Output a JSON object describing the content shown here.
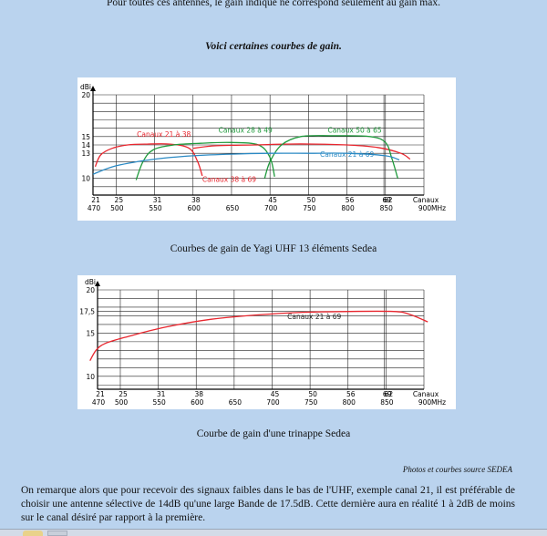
{
  "text": {
    "intro": "Pour toutes ces antennes, le gain indiqué ne correspond seulement au gain max.",
    "heading": "Voici certaines courbes de gain.",
    "caption1": "Courbes de gain de Yagi UHF 13 éléments Sedea",
    "caption2": "Courbe de gain d'une trinappe Sedea",
    "photos": "Photos et courbes source SEDEA",
    "paragraph": "On remarque alors que pour recevoir des signaux faibles dans le bas de l'UHF, exemple canal 21, il est préférable de choisir une antenne sélective de 14dB qu'une large Bande de 17.5dB. Cette dernière aura en réalité 1 à 2dB de moins sur le canal désiré par rapport à la première."
  },
  "chart_data": [
    {
      "type": "line",
      "title": "",
      "ylabel": "dBi",
      "xlabel": "Canaux MHz",
      "ylim": [
        8,
        20
      ],
      "xlim": [
        470,
        900
      ],
      "y_ticks": [
        {
          "value": 20,
          "label": "20"
        },
        {
          "value": 15,
          "label": "15"
        },
        {
          "value": 14,
          "label": "14"
        },
        {
          "value": 13,
          "label": "13"
        },
        {
          "value": 10,
          "label": "10"
        }
      ],
      "x_ticks": [
        {
          "value": 470,
          "mhz": "470",
          "canal": "21"
        },
        {
          "value": 500,
          "mhz": "500",
          "canal": "25"
        },
        {
          "value": 550,
          "mhz": "550",
          "canal": "31"
        },
        {
          "value": 600,
          "mhz": "600",
          "canal": "38"
        },
        {
          "value": 650,
          "mhz": "650",
          "canal": ""
        },
        {
          "value": 700,
          "mhz": "700",
          "canal": "45"
        },
        {
          "value": 750,
          "mhz": "750",
          "canal": "50"
        },
        {
          "value": 800,
          "mhz": "800",
          "canal": "56"
        },
        {
          "value": 850,
          "mhz": "850",
          "canal": "62"
        },
        {
          "value": 900,
          "mhz": "900",
          "canal": "69"
        }
      ],
      "x_ticks_extra": [
        {
          "value": 848,
          "canal": "69"
        }
      ],
      "axis_unit_label": "Canaux",
      "axis_unit_mhz": "MHz",
      "grid": true,
      "series": [
        {
          "name": "Canaux 21 à 38",
          "color": "#e8262e",
          "x": [
            473,
            480,
            495,
            515,
            540,
            570,
            595,
            606,
            612
          ],
          "y": [
            11.4,
            12.8,
            13.6,
            14.0,
            14.1,
            14.1,
            13.6,
            12.0,
            10.3
          ]
        },
        {
          "name": "Canaux 28 à 49",
          "color": "#1f9a3c",
          "x": [
            526,
            535,
            548,
            575,
            610,
            650,
            685,
            700,
            706
          ],
          "y": [
            9.8,
            12.0,
            13.4,
            14.0,
            14.2,
            14.3,
            14.0,
            12.5,
            10.2
          ]
        },
        {
          "name": "Canaux 38 à 69",
          "color": "#e8262e",
          "x": [
            600,
            630,
            680,
            720,
            760,
            800,
            840,
            870,
            882
          ],
          "y": [
            13.6,
            13.9,
            14.0,
            14.1,
            14.1,
            14.0,
            13.7,
            13.0,
            12.3
          ]
        },
        {
          "name": "Canaux 50 à 65",
          "color": "#1f9a3c",
          "x": [
            693,
            700,
            715,
            740,
            780,
            830,
            850,
            858,
            866
          ],
          "y": [
            10.0,
            12.0,
            14.0,
            15.0,
            15.1,
            15.0,
            14.3,
            12.5,
            10.0
          ]
        },
        {
          "name": "Canaux 21 à 69",
          "color": "#2b8ac4",
          "x": [
            470,
            500,
            550,
            600,
            650,
            700,
            750,
            800,
            850,
            868
          ],
          "y": [
            10.5,
            11.5,
            12.3,
            12.7,
            12.9,
            13.0,
            13.0,
            13.0,
            12.7,
            12.2
          ]
        }
      ],
      "annotations": [
        {
          "text": "Canaux 21 à 38",
          "x": 527,
          "y": 15.0,
          "color": "#e8262e"
        },
        {
          "text": "Canaux 28 à 49",
          "x": 633,
          "y": 15.5,
          "color": "#1f9a3c"
        },
        {
          "text": "Canaux 50 à 65",
          "x": 775,
          "y": 15.5,
          "color": "#1f9a3c"
        },
        {
          "text": "Canaux 21 à 69",
          "x": 765,
          "y": 12.6,
          "color": "#2b8ac4"
        },
        {
          "text": "Canaux 38 à 69",
          "x": 612,
          "y": 9.6,
          "color": "#e8262e"
        }
      ]
    },
    {
      "type": "line",
      "title": "",
      "ylabel": "dBi",
      "xlabel": "Canaux MHz",
      "ylim": [
        8.5,
        20
      ],
      "xlim": [
        470,
        900
      ],
      "y_ticks": [
        {
          "value": 20,
          "label": "20"
        },
        {
          "value": 17.5,
          "label": "17,5"
        },
        {
          "value": 15,
          "label": "15"
        },
        {
          "value": 10,
          "label": "10"
        }
      ],
      "x_ticks": [
        {
          "value": 470,
          "mhz": "470",
          "canal": "21"
        },
        {
          "value": 500,
          "mhz": "500",
          "canal": "25"
        },
        {
          "value": 550,
          "mhz": "550",
          "canal": "31"
        },
        {
          "value": 600,
          "mhz": "600",
          "canal": "38"
        },
        {
          "value": 650,
          "mhz": "650",
          "canal": ""
        },
        {
          "value": 700,
          "mhz": "700",
          "canal": "45"
        },
        {
          "value": 750,
          "mhz": "750",
          "canal": "50"
        },
        {
          "value": 800,
          "mhz": "800",
          "canal": "56"
        },
        {
          "value": 850,
          "mhz": "850",
          "canal": "62"
        },
        {
          "value": 900,
          "mhz": "900",
          "canal": "69"
        }
      ],
      "x_ticks_extra": [
        {
          "value": 848,
          "canal": "69"
        }
      ],
      "axis_unit_label": "Canaux",
      "axis_unit_mhz": "MHz",
      "grid": true,
      "series": [
        {
          "name": "Canaux 21 à 69",
          "color": "#e8262e",
          "x": [
            460,
            468,
            480,
            510,
            560,
            620,
            680,
            740,
            800,
            860,
            880,
            905
          ],
          "y": [
            11.8,
            13.0,
            13.8,
            14.6,
            15.7,
            16.6,
            17.1,
            17.4,
            17.5,
            17.5,
            17.2,
            16.3
          ]
        }
      ],
      "annotations": [
        {
          "text": "Canaux 21 à 69",
          "x": 720,
          "y": 16.6,
          "color": "#222222"
        }
      ]
    }
  ],
  "taskbar": {
    "start_icon": "windows-orb-icon"
  }
}
